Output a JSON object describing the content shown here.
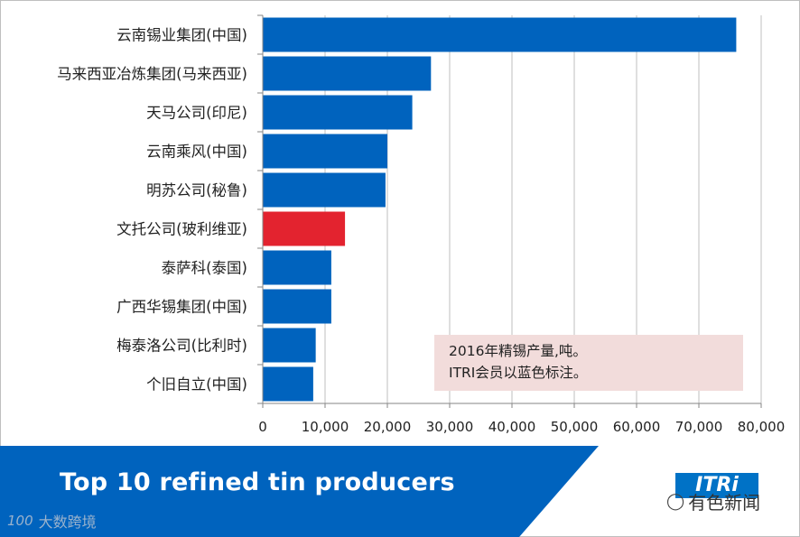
{
  "chart_data": {
    "type": "bar",
    "orientation": "horizontal",
    "title": "Top 10 refined tin producers",
    "categories": [
      "云南锡业集团(中国)",
      "马来西亚冶炼集团(马来西亚)",
      "天马公司(印尼)",
      "云南乘风(中国)",
      "明苏公司(秘鲁)",
      "文托公司(玻利维亚)",
      "泰萨科(泰国)",
      "广西华锡集团(中国)",
      "梅泰洛公司(比利时)",
      "个旧自立(中国)"
    ],
    "values": [
      76000,
      27000,
      24000,
      20000,
      19700,
      13200,
      11000,
      11000,
      8500,
      8100
    ],
    "highlight": [
      false,
      false,
      false,
      false,
      false,
      true,
      false,
      false,
      false,
      false
    ],
    "colors": {
      "itri_member": "#0063be",
      "non_member": "#e3232f"
    },
    "xlim": [
      0,
      80000
    ],
    "xticks": [
      "0",
      "10,000",
      "20,000",
      "30,000",
      "40,000",
      "50,000",
      "60,000",
      "70,000",
      "80,000"
    ],
    "grid": "vertical",
    "annotation": [
      "2016年精锡产量,吨。",
      "ITRI会员以蓝色标注。"
    ]
  },
  "banner": {
    "title": "Top 10 refined tin producers",
    "color": "#0063be"
  },
  "logo": {
    "text": "ITRi"
  },
  "watermarks": {
    "right_text": "有色新闻",
    "left_text": "大数跨境",
    "left_logo": "100"
  }
}
